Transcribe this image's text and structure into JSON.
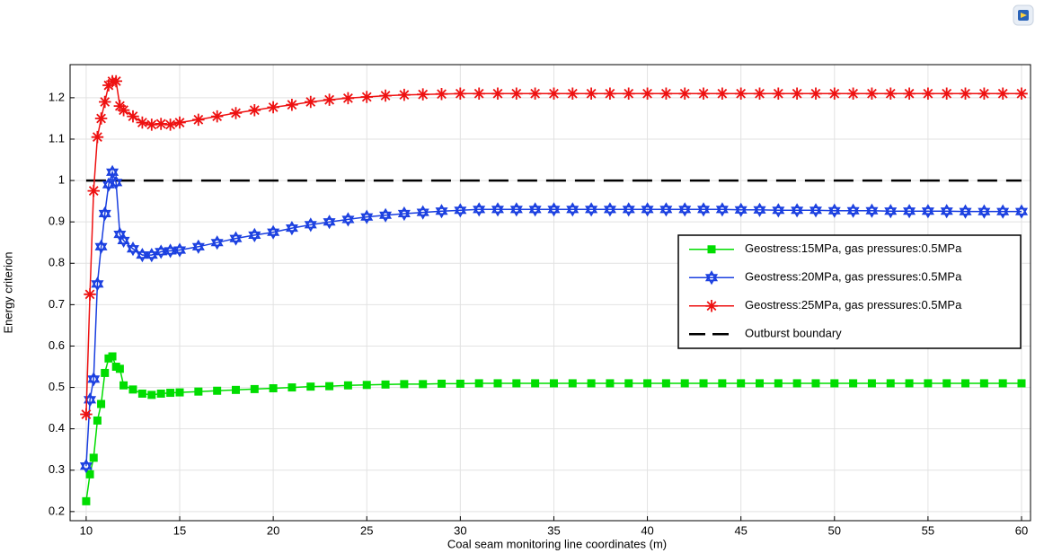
{
  "chart_data": {
    "type": "line",
    "xlabel": "Coal seam monitoring line coordinates (m)",
    "ylabel": "Energy criterion",
    "x": [
      10,
      10.2,
      10.4,
      10.6,
      10.8,
      11,
      11.2,
      11.4,
      11.6,
      11.8,
      12,
      12.5,
      13,
      13.5,
      14,
      14.5,
      15,
      16,
      17,
      18,
      19,
      20,
      21,
      22,
      23,
      24,
      25,
      26,
      27,
      28,
      29,
      30,
      31,
      32,
      33,
      34,
      35,
      36,
      37,
      38,
      39,
      40,
      41,
      42,
      43,
      44,
      45,
      46,
      47,
      48,
      49,
      50,
      51,
      52,
      53,
      54,
      55,
      56,
      57,
      58,
      59,
      60
    ],
    "series": [
      {
        "name": "Geostress:15MPa, gas pressures:0.5MPa",
        "color": "#00dd00",
        "marker": "square",
        "values": [
          0.225,
          0.29,
          0.33,
          0.42,
          0.46,
          0.535,
          0.57,
          0.575,
          0.55,
          0.545,
          0.505,
          0.495,
          0.485,
          0.482,
          0.485,
          0.487,
          0.488,
          0.49,
          0.492,
          0.494,
          0.496,
          0.498,
          0.5,
          0.502,
          0.503,
          0.505,
          0.506,
          0.507,
          0.508,
          0.508,
          0.509,
          0.509,
          0.51,
          0.51,
          0.51,
          0.51,
          0.51,
          0.51,
          0.51,
          0.51,
          0.51,
          0.51,
          0.51,
          0.51,
          0.51,
          0.51,
          0.51,
          0.51,
          0.51,
          0.51,
          0.51,
          0.51,
          0.51,
          0.51,
          0.51,
          0.51,
          0.51,
          0.51,
          0.51,
          0.51,
          0.51,
          0.51
        ]
      },
      {
        "name": "Geostress:20MPa, gas pressures:0.5MPa",
        "color": "#1a3fe0",
        "marker": "hexagram",
        "values": [
          0.31,
          0.47,
          0.52,
          0.75,
          0.84,
          0.92,
          0.99,
          1.02,
          0.995,
          0.87,
          0.855,
          0.835,
          0.82,
          0.82,
          0.828,
          0.83,
          0.832,
          0.84,
          0.85,
          0.86,
          0.868,
          0.875,
          0.885,
          0.893,
          0.9,
          0.906,
          0.912,
          0.916,
          0.92,
          0.923,
          0.926,
          0.928,
          0.93,
          0.93,
          0.93,
          0.93,
          0.93,
          0.93,
          0.93,
          0.93,
          0.93,
          0.93,
          0.93,
          0.93,
          0.93,
          0.93,
          0.929,
          0.929,
          0.928,
          0.928,
          0.928,
          0.927,
          0.927,
          0.927,
          0.926,
          0.926,
          0.926,
          0.926,
          0.925,
          0.925,
          0.925,
          0.925
        ]
      },
      {
        "name": "Geostress:25MPa, gas pressures:0.5MPa",
        "color": "#ee1111",
        "marker": "asterisk",
        "values": [
          0.435,
          0.725,
          0.975,
          1.105,
          1.15,
          1.19,
          1.23,
          1.24,
          1.24,
          1.18,
          1.17,
          1.155,
          1.14,
          1.135,
          1.137,
          1.135,
          1.14,
          1.147,
          1.155,
          1.163,
          1.17,
          1.177,
          1.183,
          1.19,
          1.195,
          1.199,
          1.202,
          1.205,
          1.207,
          1.208,
          1.209,
          1.21,
          1.21,
          1.21,
          1.21,
          1.21,
          1.21,
          1.21,
          1.21,
          1.21,
          1.21,
          1.21,
          1.21,
          1.21,
          1.21,
          1.21,
          1.21,
          1.21,
          1.21,
          1.21,
          1.21,
          1.21,
          1.21,
          1.21,
          1.21,
          1.21,
          1.21,
          1.21,
          1.21,
          1.21,
          1.21,
          1.21
        ]
      }
    ],
    "hline": {
      "name": "Outburst boundary",
      "value": 1,
      "color": "#000000"
    },
    "xlim": [
      9.14,
      60.48
    ],
    "xticks": [
      10,
      15,
      20,
      25,
      30,
      35,
      40,
      45,
      50,
      55,
      60
    ],
    "ylim": [
      0.178,
      1.28
    ],
    "yticks": [
      0.2,
      0.3,
      0.4,
      0.5,
      0.6,
      0.7,
      0.8,
      0.9,
      1,
      1.1,
      1.2
    ],
    "grid": true,
    "legend": "right"
  }
}
